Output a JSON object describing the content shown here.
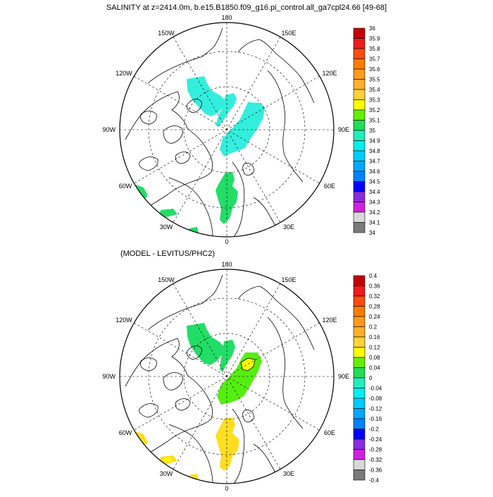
{
  "title": "SALINITY at z=2414.0m, b.e15.B1850.f09_g16.pi_control.all_ga7cpl24.66 [49-68]",
  "diff_title": "(MODEL - LEVITUS/PHC2)",
  "lon_labels": {
    "top": "180",
    "bottom": "0",
    "left": "90W",
    "right": "90E",
    "upper_left_1": "150W",
    "upper_left_2": "120W",
    "upper_right_1": "150E",
    "upper_right_2": "120E",
    "lower_left_1": "60W",
    "lower_left_2": "30W",
    "lower_right_1": "60E",
    "lower_right_2": "30E"
  },
  "legend_top": {
    "labels": [
      "36",
      "35.9",
      "35.8",
      "35.7",
      "35.6",
      "35.5",
      "35.4",
      "35.3",
      "35.2",
      "35.1",
      "35",
      "34.9",
      "34.8",
      "34.7",
      "34.6",
      "34.5",
      "34.4",
      "34.3",
      "34.2",
      "34.1",
      "34"
    ],
    "colors": [
      "#c40000",
      "#ee1c1c",
      "#ff4a10",
      "#ff7c00",
      "#ff9a1a",
      "#ffb02a",
      "#ffd23a",
      "#ffff00",
      "#66ee00",
      "#22dd55",
      "#22eebb",
      "#00f0f0",
      "#00ccff",
      "#00a8ff",
      "#0082ff",
      "#0000ff",
      "#8a2ce0",
      "#d020e0",
      "#d8d8d8",
      "#7a7a7a"
    ]
  },
  "legend_bottom": {
    "labels": [
      "0.4",
      "0.36",
      "0.32",
      "0.28",
      "0.24",
      "0.2",
      "0.16",
      "0.12",
      "0.08",
      "0.04",
      "0",
      "-0.04",
      "-0.08",
      "-0.12",
      "-0.16",
      "-0.2",
      "-0.24",
      "-0.28",
      "-0.32",
      "-0.36",
      "-0.4"
    ],
    "colors": [
      "#c40000",
      "#ee1c1c",
      "#ff4a10",
      "#ff7c00",
      "#ff9a1a",
      "#ffb02a",
      "#ffd23a",
      "#ffff00",
      "#66ee00",
      "#22dd55",
      "#22eebb",
      "#00f0f0",
      "#00ccff",
      "#00a8ff",
      "#0082ff",
      "#0000ff",
      "#8a2ce0",
      "#d020e0",
      "#d8d8d8",
      "#7a7a7a"
    ]
  },
  "fill_colors": {
    "top_cyan": "#33eedd",
    "top_green": "#22dd66",
    "bottom_green": "#22dd66",
    "bottom_lime": "#55ee11",
    "bottom_yellow": "#ffdd22",
    "bottom_bright_yellow": "#ffff00"
  }
}
